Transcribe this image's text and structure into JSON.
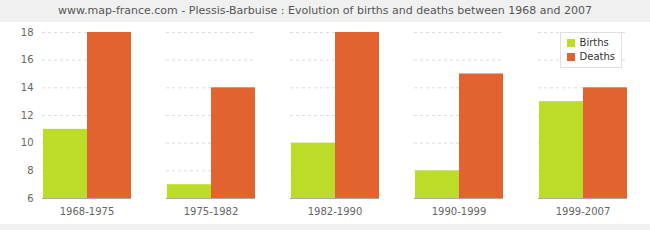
{
  "chart_data": {
    "type": "bar",
    "title": "www.map-france.com - Plessis-Barbuise : Evolution of births and deaths between 1968 and 2007",
    "categories": [
      "1968-1975",
      "1975-1982",
      "1982-1990",
      "1990-1999",
      "1999-2007"
    ],
    "series": [
      {
        "name": "Births",
        "color": "#bbdd2a",
        "values": [
          11,
          7,
          10,
          8,
          13
        ]
      },
      {
        "name": "Deaths",
        "color": "#e2632f",
        "values": [
          18,
          14,
          18,
          15,
          14
        ]
      }
    ],
    "ylim": [
      6,
      18
    ],
    "yticks": [
      6,
      8,
      10,
      12,
      14,
      16,
      18
    ],
    "grid": true,
    "legend": "top-right"
  }
}
